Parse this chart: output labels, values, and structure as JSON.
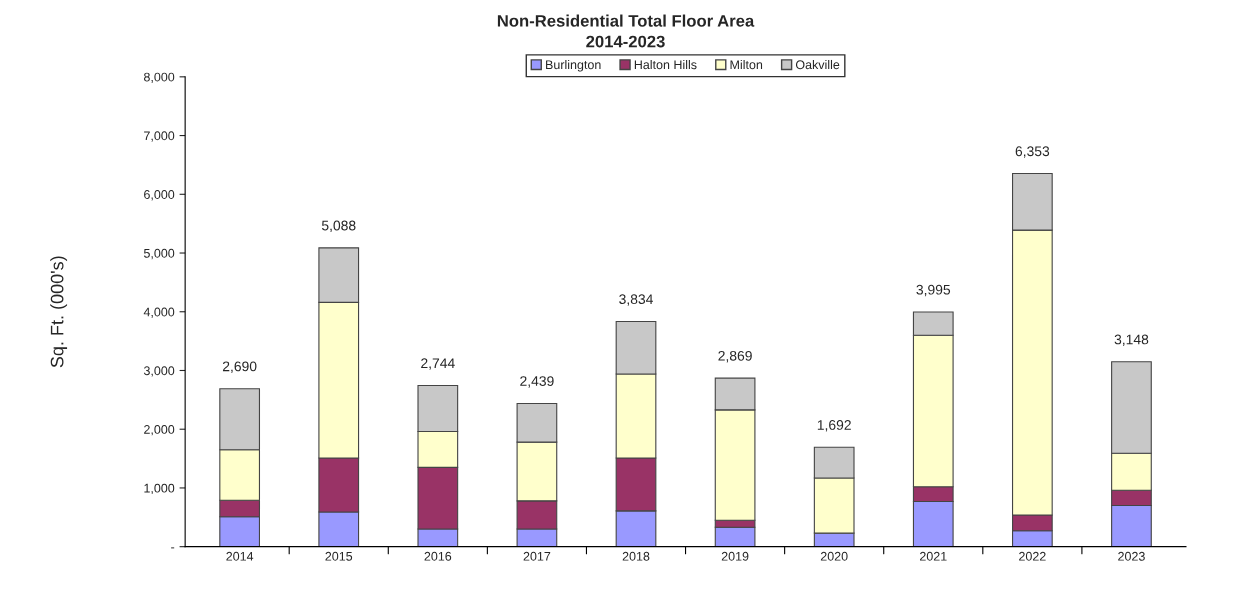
{
  "chart_data": {
    "type": "bar",
    "title": "Non-Residential Total Floor Area",
    "subtitle": "2014-2023",
    "ylabel": "Sq. Ft. (000's)",
    "categories": [
      "2014",
      "2015",
      "2016",
      "2017",
      "2018",
      "2019",
      "2020",
      "2021",
      "2022",
      "2023"
    ],
    "stacked": true,
    "series": [
      {
        "name": "Burlington",
        "color": "#9999ff",
        "values": [
          510,
          590,
          300,
          300,
          610,
          330,
          230,
          770,
          270,
          700
        ]
      },
      {
        "name": "Halton Hills",
        "color": "#993366",
        "values": [
          280,
          920,
          1050,
          480,
          900,
          120,
          null,
          250,
          270,
          260
        ]
      },
      {
        "name": "Milton",
        "color": "#ffffcc",
        "values": [
          860,
          2650,
          610,
          1000,
          1430,
          1880,
          940,
          2580,
          4850,
          630
        ]
      },
      {
        "name": "Oakville",
        "color": "#c8c8c8",
        "values": [
          1040,
          928,
          784,
          659,
          894,
          539,
          522,
          395,
          963,
          1558
        ]
      }
    ],
    "totals": [
      "2,690",
      "5,088",
      "2,744",
      "2,439",
      "3,834",
      "2,869",
      "1,692",
      "3,995",
      "6,353",
      "3,148"
    ],
    "ylim": [
      0,
      8000
    ],
    "yticks": [
      {
        "value": 0,
        "label": "-"
      },
      {
        "value": 1000,
        "label": "1,000"
      },
      {
        "value": 2000,
        "label": "2,000"
      },
      {
        "value": 3000,
        "label": "3,000"
      },
      {
        "value": 4000,
        "label": "4,000"
      },
      {
        "value": 5000,
        "label": "5,000"
      },
      {
        "value": 6000,
        "label": "6,000"
      },
      {
        "value": 7000,
        "label": "7,000"
      },
      {
        "value": 8000,
        "label": "8,000"
      }
    ],
    "grid": false,
    "legend": "top"
  }
}
